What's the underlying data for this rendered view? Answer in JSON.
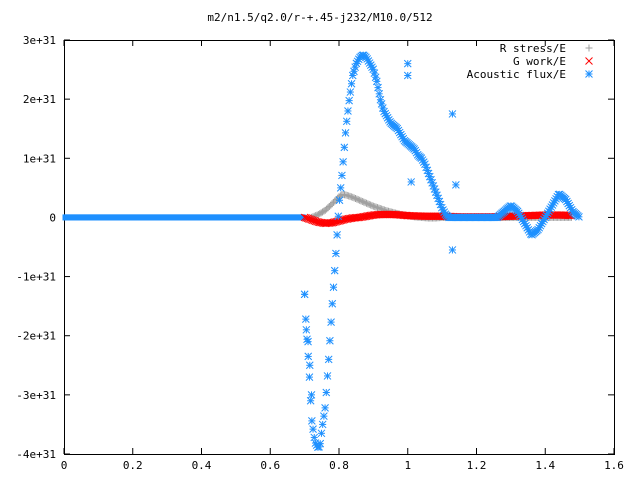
{
  "chart_data": {
    "type": "scatter",
    "title": "m2/n1.5/q2.0/r-+.45-j232/M10.0/512",
    "xlabel": "",
    "ylabel": "",
    "xlim": [
      0,
      1.6
    ],
    "ylim": [
      -4e+31,
      3e+31
    ],
    "grid": false,
    "legend_position": "top-right",
    "x_ticks": [
      {
        "value": 0,
        "label": "0"
      },
      {
        "value": 0.2,
        "label": "0.2"
      },
      {
        "value": 0.4,
        "label": "0.4"
      },
      {
        "value": 0.6,
        "label": "0.6"
      },
      {
        "value": 0.8,
        "label": "0.8"
      },
      {
        "value": 1.0,
        "label": "1"
      },
      {
        "value": 1.2,
        "label": "1.2"
      },
      {
        "value": 1.4,
        "label": "1.4"
      },
      {
        "value": 1.6,
        "label": "1.6"
      }
    ],
    "y_ticks": [
      {
        "value": 3e+31,
        "label": "3e+31"
      },
      {
        "value": 2e+31,
        "label": "2e+31"
      },
      {
        "value": 1e+31,
        "label": "1e+31"
      },
      {
        "value": 0,
        "label": "0"
      },
      {
        "value": -1e+31,
        "label": "-1e+31"
      },
      {
        "value": -2e+31,
        "label": "-2e+31"
      },
      {
        "value": -3e+31,
        "label": "-3e+31"
      },
      {
        "value": -4e+31,
        "label": "-4e+31"
      }
    ],
    "series": [
      {
        "name": "R stress/E",
        "marker": "+",
        "color": "#a0a0a0",
        "x": [
          0.72,
          0.74,
          0.76,
          0.78,
          0.8,
          0.81,
          0.82,
          0.84,
          0.86,
          0.88,
          0.9,
          0.92,
          0.94,
          0.96,
          0.98,
          1.0,
          1.02,
          1.04,
          1.06,
          1.08,
          1.1,
          1.12,
          1.14,
          1.16,
          1.2,
          1.25,
          1.3,
          1.35,
          1.4,
          1.45,
          1.48
        ],
        "y": [
          0.0,
          5e+29,
          1.2e+30,
          2.3e+30,
          3.5e+30,
          3.9e+30,
          3.8e+30,
          3.4e+30,
          2.9e+30,
          2.4e+30,
          1.9e+30,
          1.5e+30,
          1.1e+30,
          8e+29,
          5e+29,
          3e+29,
          1e+29,
          0.0,
          -1e+29,
          -1e+29,
          0.0,
          0.0,
          0.0,
          0.0,
          0.0,
          0.0,
          0.0,
          0.0,
          0.0,
          0.0,
          0.0
        ]
      },
      {
        "name": "G work/E",
        "marker": "x",
        "color": "#ff0000",
        "x": [
          0.7,
          0.72,
          0.74,
          0.76,
          0.78,
          0.8,
          0.82,
          0.84,
          0.86,
          0.88,
          0.9,
          0.92,
          0.94,
          0.96,
          0.98,
          1.0,
          1.05,
          1.1,
          1.15,
          1.2,
          1.25,
          1.3,
          1.35,
          1.4,
          1.45,
          1.48
        ],
        "y": [
          0.0,
          -4e+29,
          -8e+29,
          -1e+30,
          -9e+29,
          -6e+29,
          -3e+29,
          -1e+29,
          0.0,
          2e+29,
          4e+29,
          5e+29,
          5e+29,
          5e+29,
          4e+29,
          3e+29,
          2e+29,
          2e+29,
          1e+29,
          1e+29,
          1e+29,
          2e+29,
          3e+29,
          4e+29,
          4e+29,
          3e+29
        ]
      },
      {
        "name": "Acoustic flux/E",
        "marker": "*",
        "color": "#1e90ff",
        "x": [
          0.7,
          0.705,
          0.71,
          0.715,
          0.72,
          0.73,
          0.74,
          0.745,
          0.75,
          0.76,
          0.77,
          0.78,
          0.79,
          0.8,
          0.81,
          0.82,
          0.83,
          0.84,
          0.85,
          0.86,
          0.87,
          0.88,
          0.89,
          0.9,
          0.91,
          0.92,
          0.93,
          0.94,
          0.95,
          0.96,
          0.97,
          0.98,
          0.99,
          1.0,
          1.01,
          1.02,
          1.03,
          1.04,
          1.05,
          1.06,
          1.07,
          1.08,
          1.09,
          1.1,
          1.11,
          1.12,
          1.13,
          1.14,
          1.15,
          1.16,
          1.18,
          1.2,
          1.22,
          1.24,
          1.26,
          1.28,
          1.3,
          1.32,
          1.34,
          1.36,
          1.38,
          1.4,
          1.42,
          1.44,
          1.46,
          1.48,
          1.5
        ],
        "y": [
          -1.3e+31,
          -1.9e+31,
          -2.3e+31,
          -2.8e+31,
          -3.4e+31,
          -3.8e+31,
          -3.9e+31,
          -3.85e+31,
          -3.6e+31,
          -3.2e+31,
          -2.4e+31,
          -1.5e+31,
          -7e+30,
          2e+30,
          8e+30,
          1.5e+31,
          2e+31,
          2.4e+31,
          2.6e+31,
          2.7e+31,
          2.75e+31,
          2.7e+31,
          2.6e+31,
          2.5e+31,
          2.3e+31,
          2e+31,
          1.8e+31,
          1.7e+31,
          1.6e+31,
          1.55e+31,
          1.5e+31,
          1.4e+31,
          1.3e+31,
          1.25e+31,
          1.2e+31,
          1.15e+31,
          1.05e+31,
          1e+31,
          9e+30,
          7.5e+30,
          6e+30,
          4.5e+30,
          3e+30,
          1.5e+30,
          5e+29,
          0.0,
          0.0,
          0.0,
          0.0,
          0.0,
          0.0,
          0.0,
          0.0,
          0.0,
          0.0,
          1e+30,
          2e+30,
          1e+30,
          -1e+30,
          -3e+30,
          -2e+30,
          0.0,
          2e+30,
          4e+30,
          3e+30,
          1e+30,
          0.0
        ]
      }
    ]
  },
  "outliers": {
    "acoustic_x": [
      0.7,
      0.705,
      0.71,
      0.715,
      0.72,
      1.0,
      1.0,
      1.01,
      1.13,
      1.13,
      1.14
    ],
    "acoustic_y": [
      -1.3e+31,
      -1.9e+31,
      -2.1e+31,
      -2.5e+31,
      -3e+31,
      2.4e+31,
      2.6e+31,
      6e+30,
      1.75e+31,
      -5.5e+30,
      5.5e+30
    ]
  }
}
